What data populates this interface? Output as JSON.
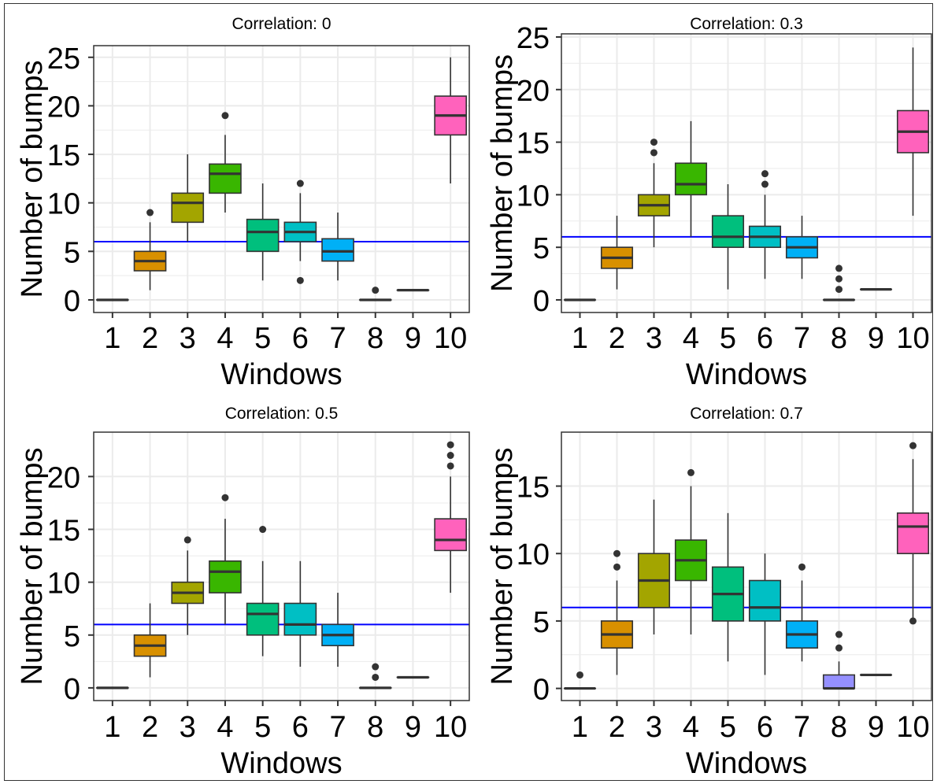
{
  "chart_data": [
    {
      "type": "box",
      "title": "Correlation: 0",
      "xlabel": "Windows",
      "ylabel": "Number of bumps",
      "categories": [
        "1",
        "2",
        "3",
        "4",
        "5",
        "6",
        "7",
        "8",
        "9",
        "10"
      ],
      "ylim": [
        -1.3,
        26.2
      ],
      "yticks": [
        0,
        5,
        10,
        15,
        20,
        25
      ],
      "yticklabels": [
        "0",
        "5",
        "10",
        "15",
        "20",
        "25"
      ],
      "reference_line": 6,
      "boxes": [
        {
          "category": "1",
          "whisker_low": 0,
          "q1": 0,
          "median": 0,
          "q3": 0,
          "whisker_high": 0,
          "outliers": []
        },
        {
          "category": "2",
          "whisker_low": 1,
          "q1": 3,
          "median": 4,
          "q3": 5,
          "whisker_high": 8,
          "outliers": [
            9
          ]
        },
        {
          "category": "3",
          "whisker_low": 6,
          "q1": 8,
          "median": 10,
          "q3": 11,
          "whisker_high": 15,
          "outliers": []
        },
        {
          "category": "4",
          "whisker_low": 9,
          "q1": 11,
          "median": 13,
          "q3": 14,
          "whisker_high": 17,
          "outliers": [
            19
          ]
        },
        {
          "category": "5",
          "whisker_low": 2,
          "q1": 5,
          "median": 7,
          "q3": 8.3,
          "whisker_high": 12,
          "outliers": []
        },
        {
          "category": "6",
          "whisker_low": 4,
          "q1": 6,
          "median": 7,
          "q3": 8,
          "whisker_high": 11,
          "outliers": [
            12,
            2
          ]
        },
        {
          "category": "7",
          "whisker_low": 2,
          "q1": 4,
          "median": 5,
          "q3": 6.3,
          "whisker_high": 9,
          "outliers": []
        },
        {
          "category": "8",
          "whisker_low": 0,
          "q1": 0,
          "median": 0,
          "q3": 0,
          "whisker_high": 0,
          "outliers": [
            1
          ]
        },
        {
          "category": "9",
          "whisker_low": 1,
          "q1": 1,
          "median": 1,
          "q3": 1,
          "whisker_high": 1,
          "outliers": []
        },
        {
          "category": "10",
          "whisker_low": 12,
          "q1": 17,
          "median": 19,
          "q3": 21,
          "whisker_high": 25,
          "outliers": []
        }
      ]
    },
    {
      "type": "box",
      "title": "Correlation: 0.3",
      "xlabel": "Windows",
      "ylabel": "Number of bumps",
      "categories": [
        "1",
        "2",
        "3",
        "4",
        "5",
        "6",
        "7",
        "8",
        "9",
        "10"
      ],
      "ylim": [
        -1.2,
        25.3
      ],
      "yticks": [
        0,
        5,
        10,
        15,
        20,
        25
      ],
      "yticklabels": [
        "0",
        "5",
        "10",
        "15",
        "20",
        "25"
      ],
      "reference_line": 6,
      "boxes": [
        {
          "category": "1",
          "whisker_low": 0,
          "q1": 0,
          "median": 0,
          "q3": 0,
          "whisker_high": 0,
          "outliers": []
        },
        {
          "category": "2",
          "whisker_low": 1,
          "q1": 3,
          "median": 4,
          "q3": 5,
          "whisker_high": 8,
          "outliers": []
        },
        {
          "category": "3",
          "whisker_low": 5,
          "q1": 8,
          "median": 9,
          "q3": 10,
          "whisker_high": 13,
          "outliers": [
            14,
            15
          ]
        },
        {
          "category": "4",
          "whisker_low": 6,
          "q1": 10,
          "median": 11,
          "q3": 13,
          "whisker_high": 17,
          "outliers": []
        },
        {
          "category": "5",
          "whisker_low": 1,
          "q1": 5,
          "median": 6,
          "q3": 8,
          "whisker_high": 11,
          "outliers": []
        },
        {
          "category": "6",
          "whisker_low": 2,
          "q1": 5,
          "median": 6,
          "q3": 7,
          "whisker_high": 10,
          "outliers": [
            11,
            12
          ]
        },
        {
          "category": "7",
          "whisker_low": 2,
          "q1": 4,
          "median": 5,
          "q3": 6,
          "whisker_high": 8,
          "outliers": []
        },
        {
          "category": "8",
          "whisker_low": 0,
          "q1": 0,
          "median": 0,
          "q3": 0,
          "whisker_high": 0,
          "outliers": [
            1,
            2,
            3
          ]
        },
        {
          "category": "9",
          "whisker_low": 1,
          "q1": 1,
          "median": 1,
          "q3": 1,
          "whisker_high": 1,
          "outliers": []
        },
        {
          "category": "10",
          "whisker_low": 8,
          "q1": 14,
          "median": 16,
          "q3": 18,
          "whisker_high": 24,
          "outliers": []
        }
      ]
    },
    {
      "type": "box",
      "title": "Correlation: 0.5",
      "xlabel": "Windows",
      "ylabel": "Number of bumps",
      "categories": [
        "1",
        "2",
        "3",
        "4",
        "5",
        "6",
        "7",
        "8",
        "9",
        "10"
      ],
      "ylim": [
        -1.2,
        24.2
      ],
      "yticks": [
        0,
        5,
        10,
        15,
        20
      ],
      "yticklabels": [
        "0",
        "5",
        "10",
        "15",
        "20"
      ],
      "reference_line": 6,
      "boxes": [
        {
          "category": "1",
          "whisker_low": 0,
          "q1": 0,
          "median": 0,
          "q3": 0,
          "whisker_high": 0,
          "outliers": []
        },
        {
          "category": "2",
          "whisker_low": 1,
          "q1": 3,
          "median": 4,
          "q3": 5,
          "whisker_high": 8,
          "outliers": []
        },
        {
          "category": "3",
          "whisker_low": 5,
          "q1": 8,
          "median": 9,
          "q3": 10,
          "whisker_high": 13,
          "outliers": [
            14
          ]
        },
        {
          "category": "4",
          "whisker_low": 6,
          "q1": 9,
          "median": 11,
          "q3": 12,
          "whisker_high": 16,
          "outliers": [
            18
          ]
        },
        {
          "category": "5",
          "whisker_low": 3,
          "q1": 5,
          "median": 7,
          "q3": 8,
          "whisker_high": 12,
          "outliers": [
            15
          ]
        },
        {
          "category": "6",
          "whisker_low": 2,
          "q1": 5,
          "median": 6,
          "q3": 8,
          "whisker_high": 12,
          "outliers": []
        },
        {
          "category": "7",
          "whisker_low": 2,
          "q1": 4,
          "median": 5,
          "q3": 6,
          "whisker_high": 9,
          "outliers": []
        },
        {
          "category": "8",
          "whisker_low": 0,
          "q1": 0,
          "median": 0,
          "q3": 0,
          "whisker_high": 0,
          "outliers": [
            1,
            2
          ]
        },
        {
          "category": "9",
          "whisker_low": 1,
          "q1": 1,
          "median": 1,
          "q3": 1,
          "whisker_high": 1,
          "outliers": []
        },
        {
          "category": "10",
          "whisker_low": 9,
          "q1": 13,
          "median": 14,
          "q3": 16,
          "whisker_high": 20,
          "outliers": [
            21,
            22,
            23
          ]
        }
      ]
    },
    {
      "type": "box",
      "title": "Correlation: 0.7",
      "xlabel": "Windows",
      "ylabel": "Number of bumps",
      "categories": [
        "1",
        "2",
        "3",
        "4",
        "5",
        "6",
        "7",
        "8",
        "9",
        "10"
      ],
      "ylim": [
        -0.9,
        19.0
      ],
      "yticks": [
        0,
        5,
        10,
        15
      ],
      "yticklabels": [
        "0",
        "5",
        "10",
        "15"
      ],
      "reference_line": 6,
      "boxes": [
        {
          "category": "1",
          "whisker_low": 0,
          "q1": 0,
          "median": 0,
          "q3": 0,
          "whisker_high": 0,
          "outliers": [
            1
          ]
        },
        {
          "category": "2",
          "whisker_low": 1,
          "q1": 3,
          "median": 4,
          "q3": 5,
          "whisker_high": 8,
          "outliers": [
            9,
            10
          ]
        },
        {
          "category": "3",
          "whisker_low": 4,
          "q1": 6,
          "median": 8,
          "q3": 10,
          "whisker_high": 14,
          "outliers": []
        },
        {
          "category": "4",
          "whisker_low": 4,
          "q1": 8,
          "median": 9.5,
          "q3": 11,
          "whisker_high": 15,
          "outliers": [
            16
          ]
        },
        {
          "category": "5",
          "whisker_low": 2,
          "q1": 5,
          "median": 7,
          "q3": 9,
          "whisker_high": 13,
          "outliers": []
        },
        {
          "category": "6",
          "whisker_low": 1,
          "q1": 5,
          "median": 6,
          "q3": 8,
          "whisker_high": 10,
          "outliers": []
        },
        {
          "category": "7",
          "whisker_low": 2,
          "q1": 3,
          "median": 4,
          "q3": 5,
          "whisker_high": 8,
          "outliers": [
            9
          ]
        },
        {
          "category": "8",
          "whisker_low": 0,
          "q1": 0,
          "median": 0,
          "q3": 1,
          "whisker_high": 2,
          "outliers": [
            3,
            4
          ]
        },
        {
          "category": "9",
          "whisker_low": 1,
          "q1": 1,
          "median": 1,
          "q3": 1,
          "whisker_high": 1,
          "outliers": []
        },
        {
          "category": "10",
          "whisker_low": 5,
          "q1": 10,
          "median": 12,
          "q3": 13,
          "whisker_high": 17,
          "outliers": [
            18,
            5
          ]
        }
      ]
    }
  ],
  "colors": {
    "box_fills": [
      "#F8766D",
      "#D89000",
      "#A3A500",
      "#39B600",
      "#00BF7D",
      "#00BFC4",
      "#00B0F6",
      "#9590FF",
      "#E76BF3",
      "#FF62BC"
    ],
    "reference_line": "#0000ff",
    "grid": "#ebebeb",
    "axis": "#333333",
    "outline": "#333333",
    "text": "#000000"
  }
}
